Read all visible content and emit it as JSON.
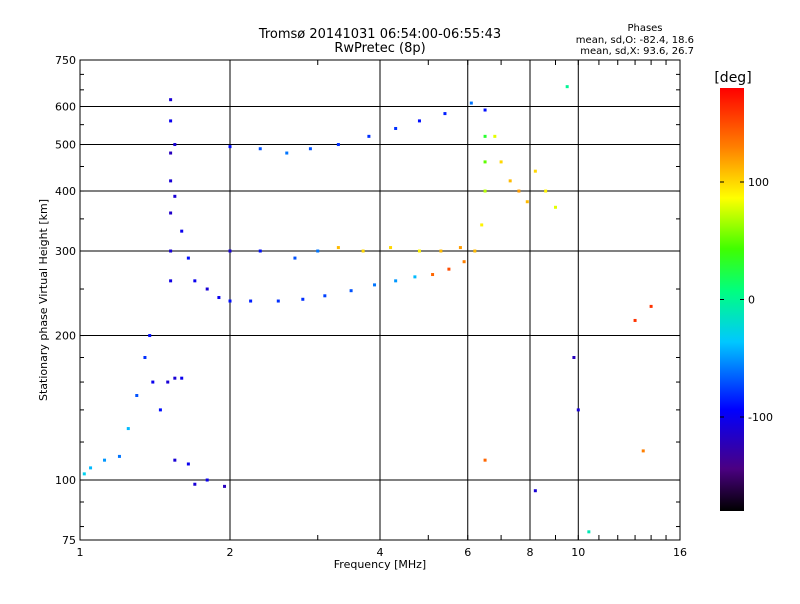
{
  "chart_data": {
    "type": "scatter",
    "title": "Tromsø 20141031 06:54:00-06:55:43",
    "subtitle": "RwPretec (8p)",
    "xlabel": "Frequency [MHz]",
    "ylabel": "Stationary phase Virtual Height [km]",
    "x_scale": "log",
    "y_scale": "log",
    "xlim": [
      1,
      16
    ],
    "ylim": [
      75,
      750
    ],
    "x_ticks": [
      1,
      2,
      4,
      6,
      8,
      10,
      16
    ],
    "x_tick_labels": [
      "1",
      "2",
      "4",
      "6",
      "8",
      "10",
      "16"
    ],
    "y_ticks": [
      75,
      100,
      200,
      300,
      400,
      500,
      600,
      750
    ],
    "y_tick_labels": [
      "75",
      "100",
      "200",
      "300",
      "400",
      "500",
      "600",
      "750"
    ],
    "grid": true,
    "phase_stats": {
      "heading": "Phases",
      "o_line": "mean, sd,O: -82.4, 18.6",
      "x_line": "mean, sd,X:  93.6, 26.7"
    },
    "colorbar": {
      "label": "[deg]",
      "range": [
        -180,
        180
      ],
      "ticks": [
        100,
        0,
        -100
      ],
      "tick_labels": [
        "100",
        "0",
        "-100"
      ],
      "colormap": "rainbow"
    },
    "series": [
      {
        "points": [
          {
            "x": 1.02,
            "y": 103,
            "c": -30
          },
          {
            "x": 1.05,
            "y": 106,
            "c": -40
          },
          {
            "x": 1.12,
            "y": 110,
            "c": -50
          },
          {
            "x": 1.2,
            "y": 112,
            "c": -60
          },
          {
            "x": 1.25,
            "y": 128,
            "c": -40
          },
          {
            "x": 1.3,
            "y": 150,
            "c": -70
          },
          {
            "x": 1.35,
            "y": 180,
            "c": -80
          },
          {
            "x": 1.38,
            "y": 200,
            "c": -90
          },
          {
            "x": 1.4,
            "y": 160,
            "c": -100
          },
          {
            "x": 1.45,
            "y": 140,
            "c": -90
          },
          {
            "x": 1.5,
            "y": 160,
            "c": -110
          },
          {
            "x": 1.55,
            "y": 163,
            "c": -110
          },
          {
            "x": 1.6,
            "y": 163,
            "c": -100
          },
          {
            "x": 1.55,
            "y": 110,
            "c": -110
          },
          {
            "x": 1.65,
            "y": 108,
            "c": -100
          },
          {
            "x": 1.7,
            "y": 98,
            "c": -110
          },
          {
            "x": 1.8,
            "y": 100,
            "c": -100
          },
          {
            "x": 1.95,
            "y": 97,
            "c": -120
          },
          {
            "x": 1.52,
            "y": 620,
            "c": -110
          },
          {
            "x": 1.52,
            "y": 560,
            "c": -100
          },
          {
            "x": 1.52,
            "y": 480,
            "c": -120
          },
          {
            "x": 1.52,
            "y": 420,
            "c": -110
          },
          {
            "x": 1.52,
            "y": 360,
            "c": -115
          },
          {
            "x": 1.52,
            "y": 300,
            "c": -110
          },
          {
            "x": 1.52,
            "y": 260,
            "c": -105
          },
          {
            "x": 1.55,
            "y": 500,
            "c": -110
          },
          {
            "x": 1.55,
            "y": 390,
            "c": -110
          },
          {
            "x": 1.6,
            "y": 330,
            "c": -100
          },
          {
            "x": 1.65,
            "y": 290,
            "c": -90
          },
          {
            "x": 1.7,
            "y": 260,
            "c": -100
          },
          {
            "x": 1.8,
            "y": 250,
            "c": -110
          },
          {
            "x": 1.9,
            "y": 240,
            "c": -100
          },
          {
            "x": 2.0,
            "y": 236,
            "c": -90
          },
          {
            "x": 2.2,
            "y": 236,
            "c": -85
          },
          {
            "x": 2.5,
            "y": 236,
            "c": -80
          },
          {
            "x": 2.8,
            "y": 238,
            "c": -80
          },
          {
            "x": 3.1,
            "y": 242,
            "c": -75
          },
          {
            "x": 3.5,
            "y": 248,
            "c": -70
          },
          {
            "x": 3.9,
            "y": 255,
            "c": -60
          },
          {
            "x": 4.3,
            "y": 260,
            "c": -50
          },
          {
            "x": 4.7,
            "y": 265,
            "c": -40
          },
          {
            "x": 5.1,
            "y": 268,
            "c": 140
          },
          {
            "x": 5.5,
            "y": 275,
            "c": 150
          },
          {
            "x": 5.9,
            "y": 285,
            "c": 130
          },
          {
            "x": 6.2,
            "y": 300,
            "c": 110
          },
          {
            "x": 6.4,
            "y": 340,
            "c": 90
          },
          {
            "x": 6.5,
            "y": 400,
            "c": 70
          },
          {
            "x": 6.5,
            "y": 460,
            "c": 50
          },
          {
            "x": 6.5,
            "y": 520,
            "c": 30
          },
          {
            "x": 6.5,
            "y": 590,
            "c": -90
          },
          {
            "x": 2.0,
            "y": 300,
            "c": -110
          },
          {
            "x": 2.3,
            "y": 300,
            "c": -90
          },
          {
            "x": 2.7,
            "y": 290,
            "c": -70
          },
          {
            "x": 3.0,
            "y": 300,
            "c": -60
          },
          {
            "x": 3.3,
            "y": 305,
            "c": 110
          },
          {
            "x": 3.7,
            "y": 300,
            "c": 100
          },
          {
            "x": 4.2,
            "y": 305,
            "c": 100
          },
          {
            "x": 4.8,
            "y": 300,
            "c": 90
          },
          {
            "x": 5.3,
            "y": 300,
            "c": 110
          },
          {
            "x": 5.8,
            "y": 305,
            "c": 120
          },
          {
            "x": 2.0,
            "y": 495,
            "c": -90
          },
          {
            "x": 2.3,
            "y": 490,
            "c": -70
          },
          {
            "x": 2.6,
            "y": 480,
            "c": -60
          },
          {
            "x": 2.9,
            "y": 490,
            "c": -70
          },
          {
            "x": 3.3,
            "y": 500,
            "c": -80
          },
          {
            "x": 3.8,
            "y": 520,
            "c": -80
          },
          {
            "x": 4.3,
            "y": 540,
            "c": -80
          },
          {
            "x": 4.8,
            "y": 560,
            "c": -90
          },
          {
            "x": 5.4,
            "y": 580,
            "c": -85
          },
          {
            "x": 6.1,
            "y": 610,
            "c": -60
          },
          {
            "x": 6.8,
            "y": 520,
            "c": 80
          },
          {
            "x": 7.0,
            "y": 460,
            "c": 100
          },
          {
            "x": 7.3,
            "y": 420,
            "c": 110
          },
          {
            "x": 7.6,
            "y": 400,
            "c": 120
          },
          {
            "x": 7.9,
            "y": 380,
            "c": 110
          },
          {
            "x": 8.2,
            "y": 440,
            "c": 100
          },
          {
            "x": 8.6,
            "y": 400,
            "c": 90
          },
          {
            "x": 9.0,
            "y": 370,
            "c": 80
          },
          {
            "x": 6.5,
            "y": 110,
            "c": 140
          },
          {
            "x": 8.2,
            "y": 95,
            "c": -110
          },
          {
            "x": 9.8,
            "y": 180,
            "c": -120
          },
          {
            "x": 10.0,
            "y": 140,
            "c": -110
          },
          {
            "x": 10.5,
            "y": 78,
            "c": -10
          },
          {
            "x": 13.0,
            "y": 215,
            "c": 160
          },
          {
            "x": 14.0,
            "y": 230,
            "c": 160
          },
          {
            "x": 13.5,
            "y": 115,
            "c": 130
          },
          {
            "x": 9.5,
            "y": 660,
            "c": 0
          }
        ]
      }
    ]
  }
}
